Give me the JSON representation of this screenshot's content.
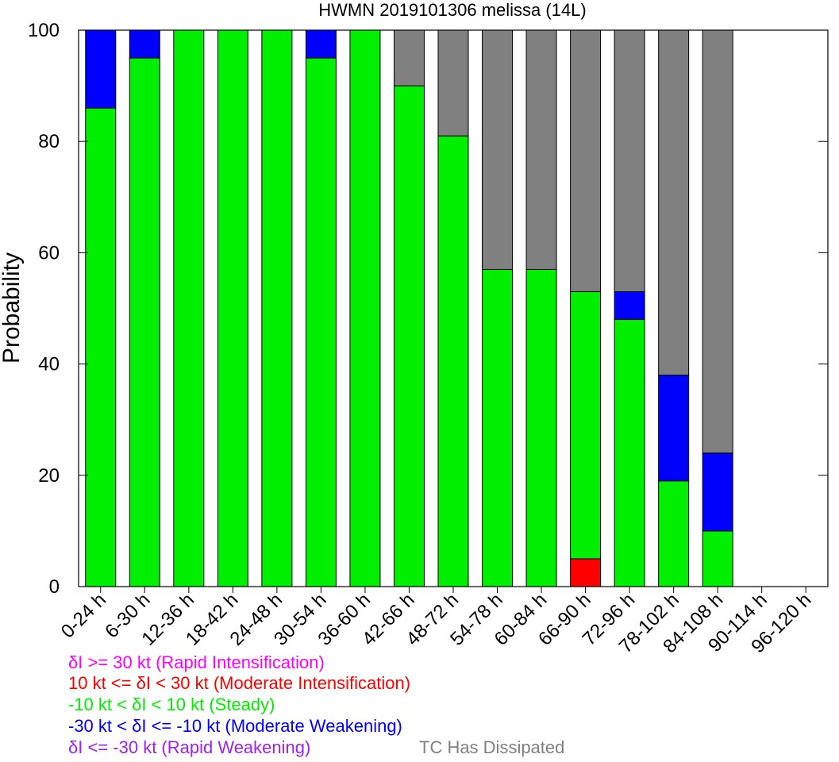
{
  "chart_data": {
    "type": "bar",
    "stacked": true,
    "title": "HWMN 2019101306 melissa (14L)",
    "xlabel": "",
    "ylabel": "Probability",
    "ylim": [
      0,
      100
    ],
    "yticks": [
      0,
      20,
      40,
      60,
      80,
      100
    ],
    "categories": [
      "0-24 h",
      "6-30 h",
      "12-36 h",
      "18-42 h",
      "24-48 h",
      "30-54 h",
      "36-60 h",
      "42-66 h",
      "48-72 h",
      "54-78 h",
      "60-84 h",
      "66-90 h",
      "72-96 h",
      "78-102 h",
      "84-108 h",
      "90-114 h",
      "96-120 h"
    ],
    "series": [
      {
        "name": "Rapid Intensification",
        "color": "#ff00ff",
        "values": [
          0,
          0,
          0,
          0,
          0,
          0,
          0,
          0,
          0,
          0,
          0,
          0,
          0,
          0,
          0,
          0,
          0
        ]
      },
      {
        "name": "Moderate Intensification",
        "color": "#ff0000",
        "values": [
          0,
          0,
          0,
          0,
          0,
          0,
          0,
          0,
          0,
          0,
          0,
          5,
          0,
          0,
          0,
          0,
          0
        ]
      },
      {
        "name": "Steady",
        "color": "#00ee00",
        "values": [
          86,
          95,
          100,
          100,
          100,
          95,
          100,
          90,
          81,
          57,
          57,
          48,
          48,
          19,
          10,
          0,
          0
        ]
      },
      {
        "name": "Moderate Weakening",
        "color": "#0000ff",
        "values": [
          14,
          5,
          0,
          0,
          0,
          5,
          0,
          0,
          0,
          0,
          0,
          0,
          5,
          19,
          14,
          0,
          0
        ]
      },
      {
        "name": "Rapid Weakening",
        "color": "#a020f0",
        "values": [
          0,
          0,
          0,
          0,
          0,
          0,
          0,
          0,
          0,
          0,
          0,
          0,
          0,
          0,
          0,
          0,
          0
        ]
      },
      {
        "name": "TC Has Dissipated",
        "color": "#808080",
        "values": [
          0,
          0,
          0,
          0,
          0,
          0,
          0,
          10,
          19,
          43,
          43,
          47,
          47,
          62,
          76,
          0,
          0
        ]
      }
    ],
    "grid": false,
    "legend_position": "bottom-left"
  },
  "legend": [
    {
      "text": "δI >= 30 kt (Rapid Intensification)",
      "color": "#ff00ff"
    },
    {
      "text": "10 kt <= δI < 30 kt (Moderate Intensification)",
      "color": "#ff0000"
    },
    {
      "text": "-10 kt < δI < 10 kt (Steady)",
      "color": "#00ee00"
    },
    {
      "text": "-30 kt < δI <= -10 kt (Moderate Weakening)",
      "color": "#0000ff"
    },
    {
      "text": "δI <= -30 kt (Rapid Weakening)",
      "color": "#a020f0"
    },
    {
      "text": "TC Has Dissipated",
      "color": "#808080"
    }
  ]
}
